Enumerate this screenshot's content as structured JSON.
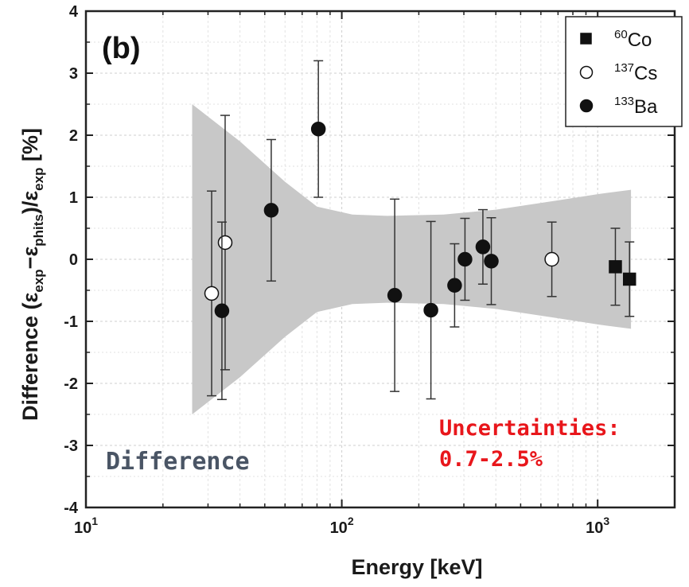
{
  "chart_data": {
    "type": "scatter",
    "panel_label": "(b)",
    "xlabel": "Energy [keV]",
    "ylabel_parts": {
      "prefix": "Difference (ε",
      "sub1": "exp",
      "mid1": "−ε",
      "sub2": "phits",
      "mid2": ")/ε",
      "sub3": "exp",
      "suffix": " [%]"
    },
    "x_scale": "log",
    "xlim": [
      10,
      2000
    ],
    "ylim": [
      -4,
      4
    ],
    "x_ticks": [
      {
        "value": 10,
        "base": "10",
        "exp": "1"
      },
      {
        "value": 100,
        "base": "10",
        "exp": "2"
      },
      {
        "value": 1000,
        "base": "10",
        "exp": "3"
      }
    ],
    "y_ticks": [
      -4,
      -3,
      -2,
      -1,
      0,
      1,
      2,
      3,
      4
    ],
    "grid": true,
    "legend_position": "top-right",
    "series": [
      {
        "name_mass": "60",
        "name_element": "Co",
        "marker": "square",
        "fill": "#111111",
        "points": [
          {
            "x": 1173,
            "y": -0.12,
            "err": 0.62
          },
          {
            "x": 1332,
            "y": -0.32,
            "err": 0.6
          }
        ]
      },
      {
        "name_mass": "137",
        "name_element": "Cs",
        "marker": "circle",
        "fill": "#ffffff",
        "points": [
          {
            "x": 31,
            "y": -0.55,
            "err": 1.65
          },
          {
            "x": 35,
            "y": 0.27,
            "err": 2.05
          },
          {
            "x": 662,
            "y": 0.0,
            "err": 0.6
          }
        ]
      },
      {
        "name_mass": "133",
        "name_element": "Ba",
        "marker": "circle",
        "fill": "#111111",
        "points": [
          {
            "x": 34,
            "y": -0.83,
            "err": 1.43
          },
          {
            "x": 53,
            "y": 0.79,
            "err": 1.14
          },
          {
            "x": 81,
            "y": 2.1,
            "err": 1.1
          },
          {
            "x": 161,
            "y": -0.58,
            "err": 1.55
          },
          {
            "x": 223,
            "y": -0.82,
            "err": 1.43
          },
          {
            "x": 276,
            "y": -0.42,
            "err": 0.67
          },
          {
            "x": 303,
            "y": 0.0,
            "err": 0.66
          },
          {
            "x": 356,
            "y": 0.2,
            "err": 0.6
          },
          {
            "x": 384,
            "y": -0.03,
            "err": 0.7
          }
        ]
      }
    ],
    "uncertainty_band": {
      "color": "#c8c8c8",
      "points": [
        {
          "x": 26,
          "half_width": 2.5
        },
        {
          "x": 40,
          "half_width": 1.9
        },
        {
          "x": 60,
          "half_width": 1.25
        },
        {
          "x": 80,
          "half_width": 0.85
        },
        {
          "x": 110,
          "half_width": 0.72
        },
        {
          "x": 150,
          "half_width": 0.7
        },
        {
          "x": 250,
          "half_width": 0.72
        },
        {
          "x": 400,
          "half_width": 0.8
        },
        {
          "x": 700,
          "half_width": 0.95
        },
        {
          "x": 1000,
          "half_width": 1.05
        },
        {
          "x": 1350,
          "half_width": 1.12
        }
      ]
    },
    "annotations": {
      "uncertainty_line1": "Uncertainties:",
      "uncertainty_line2": "0.7-2.5%",
      "difference_label": "Difference"
    }
  }
}
